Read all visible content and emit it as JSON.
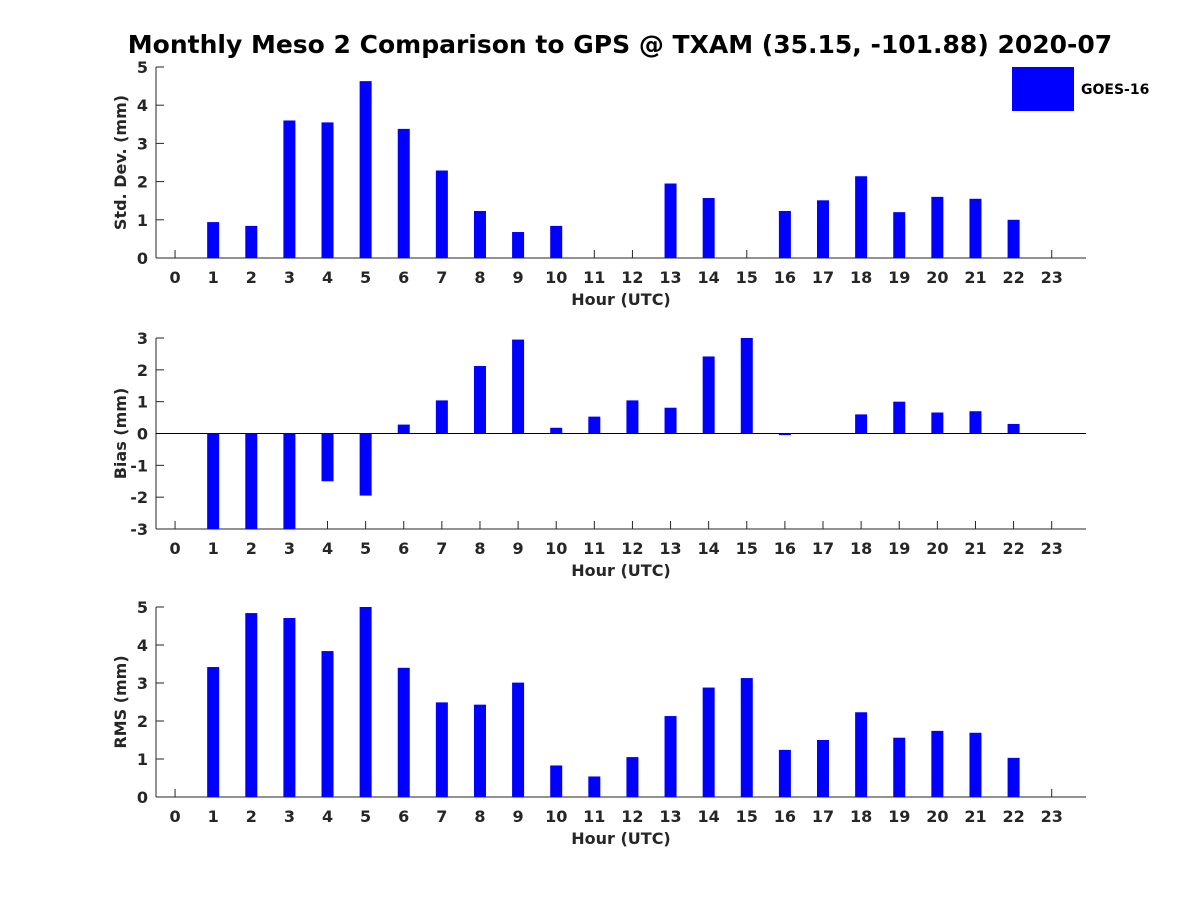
{
  "title": "Monthly Meso 2 Comparison to GPS @ TXAM (35.15, -101.88) 2020-07",
  "legend": {
    "label": "GOES-16",
    "color": "#0000ff",
    "placement": "top-right"
  },
  "chart_data": [
    {
      "type": "bar",
      "name": "std-dev",
      "xlabel": "Hour (UTC)",
      "ylabel": "Std. Dev. (mm)",
      "ylim": [
        0,
        5
      ],
      "yticks": [
        0,
        1,
        2,
        3,
        4,
        5
      ],
      "categories": [
        "0",
        "1",
        "2",
        "3",
        "4",
        "5",
        "6",
        "7",
        "8",
        "9",
        "10",
        "11",
        "12",
        "13",
        "14",
        "15",
        "16",
        "17",
        "18",
        "19",
        "20",
        "21",
        "22",
        "23"
      ],
      "series": [
        {
          "name": "GOES-16",
          "values": [
            0,
            0.94,
            0.84,
            3.6,
            3.55,
            4.63,
            3.38,
            2.29,
            1.23,
            0.68,
            0.84,
            0,
            0,
            1.95,
            1.57,
            0,
            1.23,
            1.51,
            2.14,
            1.2,
            1.6,
            1.55,
            1.0,
            0
          ]
        }
      ]
    },
    {
      "type": "bar",
      "name": "bias",
      "xlabel": "Hour (UTC)",
      "ylabel": "Bias (mm)",
      "ylim": [
        -3,
        3
      ],
      "yticks": [
        -3,
        -2,
        -1,
        0,
        1,
        2,
        3
      ],
      "categories": [
        "0",
        "1",
        "2",
        "3",
        "4",
        "5",
        "6",
        "7",
        "8",
        "9",
        "10",
        "11",
        "12",
        "13",
        "14",
        "15",
        "16",
        "17",
        "18",
        "19",
        "20",
        "21",
        "22",
        "23"
      ],
      "series": [
        {
          "name": "GOES-16",
          "values": [
            0,
            -3.0,
            -3.0,
            -3.0,
            -1.5,
            -1.95,
            0.28,
            1.04,
            2.12,
            2.95,
            0.18,
            0.53,
            1.04,
            0.81,
            2.42,
            3.0,
            -0.05,
            0,
            0.6,
            1.0,
            0.66,
            0.7,
            0.3,
            0
          ]
        }
      ]
    },
    {
      "type": "bar",
      "name": "rms",
      "xlabel": "Hour (UTC)",
      "ylabel": "RMS (mm)",
      "ylim": [
        0,
        5
      ],
      "yticks": [
        0,
        1,
        2,
        3,
        4,
        5
      ],
      "categories": [
        "0",
        "1",
        "2",
        "3",
        "4",
        "5",
        "6",
        "7",
        "8",
        "9",
        "10",
        "11",
        "12",
        "13",
        "14",
        "15",
        "16",
        "17",
        "18",
        "19",
        "20",
        "21",
        "22",
        "23"
      ],
      "series": [
        {
          "name": "GOES-16",
          "values": [
            0,
            3.42,
            4.84,
            4.71,
            3.84,
            5.0,
            3.4,
            2.49,
            2.43,
            3.01,
            0.83,
            0.54,
            1.05,
            2.13,
            2.88,
            3.13,
            1.24,
            1.5,
            2.23,
            1.56,
            1.74,
            1.69,
            1.03,
            0
          ]
        }
      ]
    }
  ]
}
